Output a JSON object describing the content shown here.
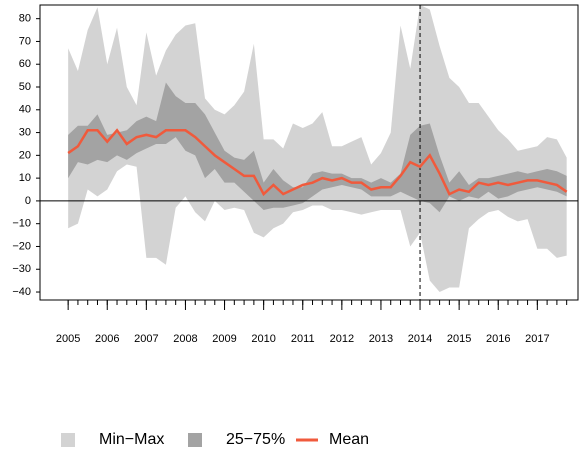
{
  "chart_data": {
    "type": "band",
    "x": [
      2005,
      2005.25,
      2005.5,
      2005.75,
      2006,
      2006.25,
      2006.5,
      2006.75,
      2007,
      2007.25,
      2007.5,
      2007.75,
      2008,
      2008.25,
      2008.5,
      2008.75,
      2009,
      2009.25,
      2009.5,
      2009.75,
      2010,
      2010.25,
      2010.5,
      2010.75,
      2011,
      2011.25,
      2011.5,
      2011.75,
      2012,
      2012.25,
      2012.5,
      2012.75,
      2013,
      2013.25,
      2013.5,
      2013.75,
      2014,
      2014.25,
      2014.5,
      2014.75,
      2015,
      2015.25,
      2015.5,
      2015.75,
      2016,
      2016.25,
      2016.5,
      2016.75,
      2017,
      2017.25,
      2017.5,
      2017.75
    ],
    "xlim": [
      2004.28,
      2018.04
    ],
    "xticks": [
      2005,
      2006,
      2007,
      2008,
      2009,
      2010,
      2011,
      2012,
      2013,
      2014,
      2015,
      2016,
      2017
    ],
    "ylim": [
      -43.5,
      86
    ],
    "yticks": [
      {
        "value": -40,
        "label": "−40"
      },
      {
        "value": -30,
        "label": "−30"
      },
      {
        "value": -20,
        "label": "−20"
      },
      {
        "value": -10,
        "label": "−10"
      },
      0,
      10,
      20,
      30,
      40,
      50,
      60,
      70,
      80
    ],
    "hline": 0,
    "vline": 2014,
    "series": [
      {
        "name": "Min−Max",
        "kind": "band",
        "color": "#d3d3d3",
        "high": [
          67,
          57,
          75,
          85,
          60,
          76,
          50,
          42,
          74,
          55,
          66,
          73,
          77,
          78,
          45,
          40,
          38,
          42,
          48,
          69,
          27,
          27,
          23,
          34,
          32,
          34,
          39,
          24,
          24,
          26,
          28,
          16,
          21,
          30,
          77,
          58,
          86,
          84,
          68,
          54,
          50,
          43,
          43,
          37,
          31,
          27,
          22,
          23,
          24,
          28,
          27,
          19
        ],
        "low": [
          -12,
          -10,
          5,
          2,
          5,
          13,
          16,
          15,
          -25,
          -25,
          -28,
          -3,
          2,
          -5,
          -9,
          0,
          -4,
          -3,
          -4,
          -14,
          -16,
          -12,
          -10,
          -5,
          -4,
          -2,
          -2,
          -4,
          -4,
          -5,
          -6,
          -5,
          -4,
          -4,
          -4,
          -20,
          -14,
          -35,
          -40,
          -38,
          -38,
          -12,
          -8,
          -5,
          -4,
          -7,
          -9,
          -8,
          -21,
          -21,
          -25,
          -24
        ]
      },
      {
        "name": "25−75%",
        "kind": "band",
        "color": "#a3a3a3",
        "high": [
          29,
          33,
          33,
          38,
          29,
          30,
          31,
          35,
          37,
          35,
          52,
          46,
          43,
          43,
          38,
          30,
          22,
          19,
          18,
          22,
          8,
          14,
          9,
          6,
          6,
          12,
          13,
          12,
          12,
          10,
          10,
          8,
          10,
          8,
          12,
          29,
          33,
          34,
          20,
          8,
          13,
          7,
          10,
          10,
          11,
          12,
          13,
          12,
          13,
          14,
          13,
          11
        ],
        "low": [
          10,
          17,
          16,
          18,
          17,
          20,
          18,
          21,
          23,
          25,
          25,
          28,
          22,
          20,
          10,
          14,
          8,
          8,
          4,
          0,
          -4,
          -3,
          -3,
          -2,
          -1,
          2,
          5,
          6,
          7,
          6,
          5,
          2,
          2,
          2,
          4,
          2,
          0,
          -1,
          -5,
          2,
          0,
          2,
          1,
          4,
          1,
          2,
          4,
          5,
          6,
          5,
          4,
          2
        ]
      },
      {
        "name": "Mean",
        "kind": "line",
        "color": "#f05a3c",
        "values": [
          21,
          24,
          31,
          31,
          26,
          31,
          25,
          28,
          29,
          28,
          31,
          31,
          31,
          28,
          24,
          20,
          17,
          14,
          11,
          11,
          3,
          7,
          3,
          5,
          7,
          8,
          10,
          9,
          10,
          8,
          8,
          5,
          6,
          6,
          11,
          17,
          15,
          20,
          12,
          3,
          5,
          4,
          8,
          7,
          8,
          7,
          8,
          9,
          9,
          8,
          7,
          4
        ]
      }
    ]
  }
}
